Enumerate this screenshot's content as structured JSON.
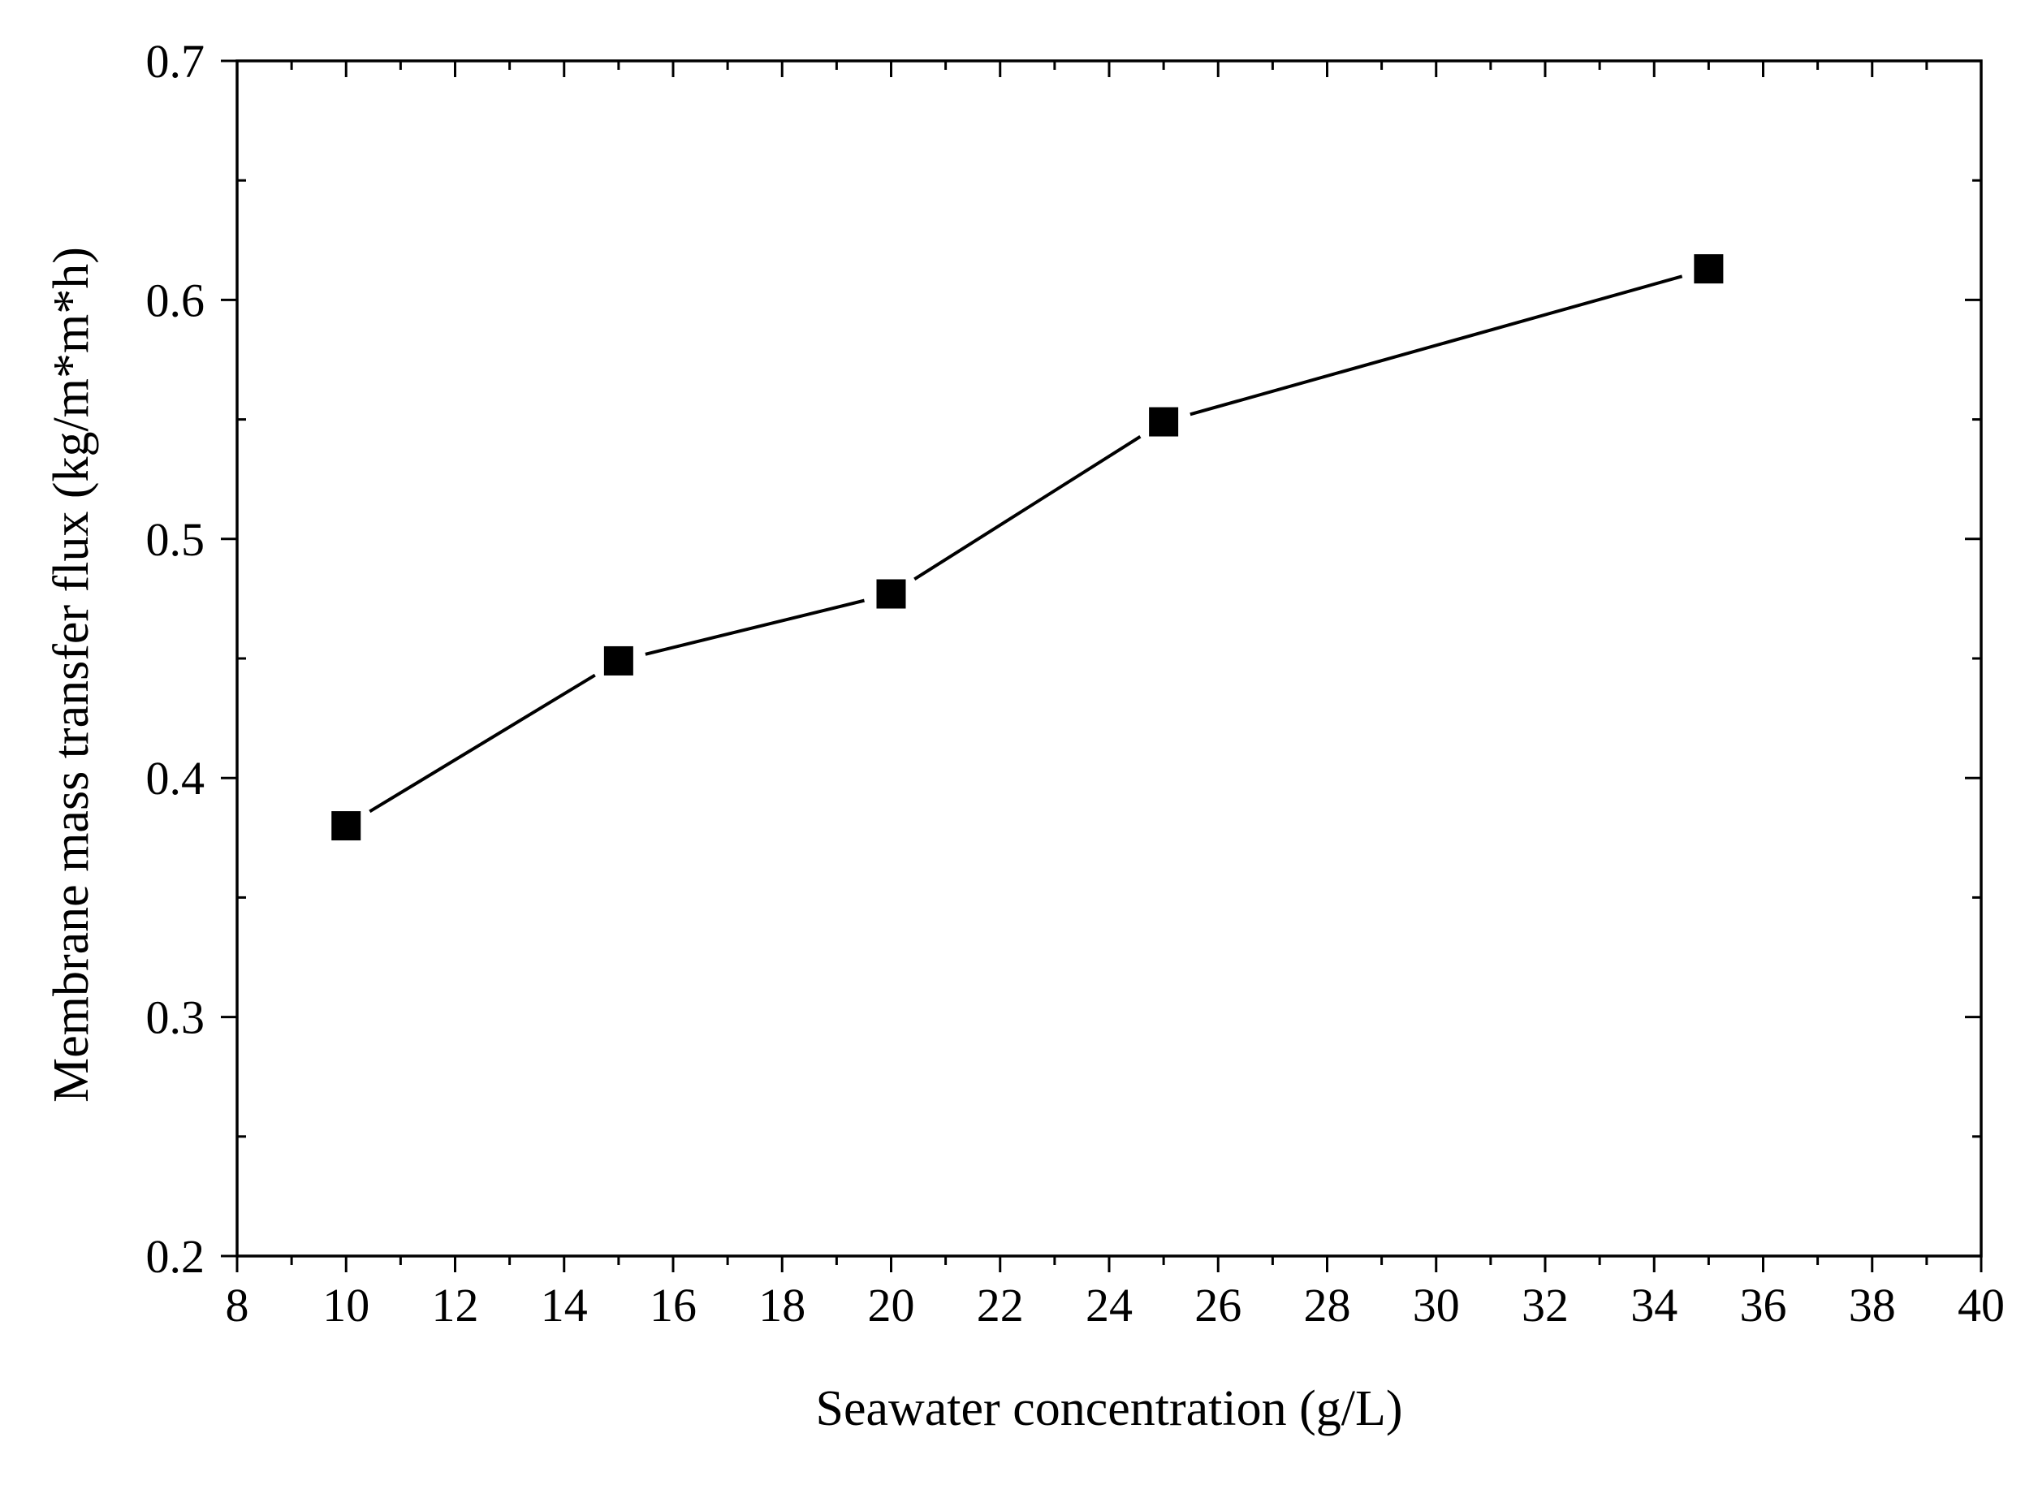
{
  "chart_data": {
    "type": "line",
    "title": "",
    "xlabel": "Seawater concentration  (g/L)",
    "ylabel": "Membrane mass transfer flux (kg/m*m*h)",
    "xlim": [
      8,
      40
    ],
    "ylim": [
      0.2,
      0.7
    ],
    "x_ticks": [
      8,
      10,
      12,
      14,
      16,
      18,
      20,
      22,
      24,
      26,
      28,
      30,
      32,
      34,
      36,
      38,
      40
    ],
    "x_tick_labels": [
      "8",
      "10",
      "12",
      "14",
      "16",
      "18",
      "20",
      "22",
      "24",
      "26",
      "28",
      "30",
      "32",
      "34",
      "36",
      "38",
      "40"
    ],
    "y_ticks": [
      0.2,
      0.3,
      0.4,
      0.5,
      0.6,
      0.7
    ],
    "y_tick_labels": [
      "0.2",
      "0.3",
      "0.4",
      "0.5",
      "0.6",
      "0.7"
    ],
    "grid": false,
    "legend": false,
    "series": [
      {
        "name": "Membrane mass transfer flux",
        "x": [
          10,
          15,
          20,
          25,
          35
        ],
        "y": [
          0.38,
          0.449,
          0.477,
          0.549,
          0.613
        ],
        "marker": "square",
        "color": "#000000"
      }
    ]
  }
}
